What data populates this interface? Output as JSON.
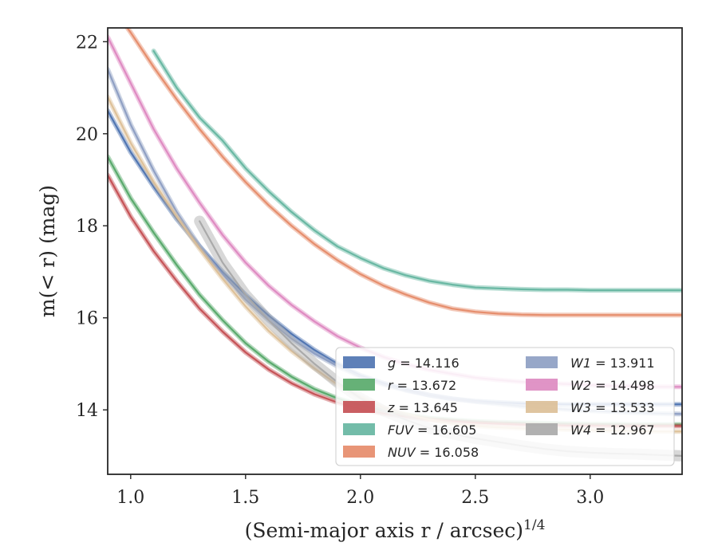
{
  "chart_data": {
    "type": "line",
    "xlabel": "(Semi-major axis r / arcsec)",
    "xlabel_sup": "1/4",
    "ylabel": "m(< r) (mag)",
    "xlim": [
      0.9,
      3.4
    ],
    "ylim": [
      22.3,
      12.6
    ],
    "y_inverted": true,
    "xticks": [
      1.0,
      1.5,
      2.0,
      2.5,
      3.0
    ],
    "xtick_labels": [
      "1.0",
      "1.5",
      "2.0",
      "2.5",
      "3.0"
    ],
    "yticks": [
      14,
      16,
      18,
      20,
      22
    ],
    "ytick_labels": [
      "14",
      "16",
      "18",
      "20",
      "22"
    ],
    "grid": false,
    "legend_position": "lower-right",
    "legend_columns": 2,
    "series": [
      {
        "name": "g",
        "total": "14.116",
        "label_suffix": " = 14.116",
        "color": "#4c72b0",
        "x": [
          0.9,
          1.0,
          1.1,
          1.2,
          1.3,
          1.4,
          1.5,
          1.6,
          1.7,
          1.8,
          1.9,
          2.0,
          2.1,
          2.2,
          2.3,
          2.4,
          2.5,
          2.6,
          2.7,
          2.8,
          2.9,
          3.0,
          3.1,
          3.2,
          3.3,
          3.4
        ],
        "y": [
          20.5,
          19.6,
          18.85,
          18.15,
          17.55,
          17.0,
          16.5,
          16.05,
          15.65,
          15.3,
          15.0,
          14.75,
          14.58,
          14.44,
          14.32,
          14.24,
          14.19,
          14.16,
          14.14,
          14.13,
          14.12,
          14.12,
          14.12,
          14.12,
          14.12,
          14.12
        ]
      },
      {
        "name": "r",
        "total": "13.672",
        "label_suffix": " = 13.672",
        "color": "#55a868",
        "x": [
          0.9,
          1.0,
          1.1,
          1.2,
          1.3,
          1.4,
          1.5,
          1.6,
          1.7,
          1.8,
          1.9,
          2.0,
          2.1,
          2.2,
          2.3,
          2.4,
          2.5,
          2.6,
          2.7,
          2.8,
          2.9,
          3.0,
          3.1,
          3.2,
          3.3,
          3.4
        ],
        "y": [
          19.5,
          18.6,
          17.85,
          17.15,
          16.5,
          15.95,
          15.45,
          15.05,
          14.72,
          14.45,
          14.25,
          14.1,
          13.98,
          13.89,
          13.82,
          13.78,
          13.75,
          13.73,
          13.72,
          13.71,
          13.7,
          13.69,
          13.69,
          13.68,
          13.68,
          13.68
        ]
      },
      {
        "name": "z",
        "total": "13.645",
        "label_suffix": " = 13.645",
        "color": "#c44e52",
        "x": [
          0.9,
          1.0,
          1.1,
          1.2,
          1.3,
          1.4,
          1.5,
          1.6,
          1.7,
          1.8,
          1.9,
          2.0,
          2.1,
          2.2,
          2.3,
          2.4,
          2.5,
          2.6,
          2.7,
          2.8,
          2.9,
          3.0,
          3.1,
          3.2,
          3.3,
          3.4
        ],
        "y": [
          19.1,
          18.2,
          17.45,
          16.8,
          16.2,
          15.7,
          15.25,
          14.88,
          14.58,
          14.34,
          14.16,
          14.02,
          13.92,
          13.85,
          13.79,
          13.75,
          13.72,
          13.7,
          13.68,
          13.67,
          13.66,
          13.66,
          13.65,
          13.65,
          13.65,
          13.65
        ]
      },
      {
        "name": "FUV",
        "total": "16.605",
        "label_suffix": " = 16.605",
        "color": "#64b5a0",
        "x": [
          1.1,
          1.2,
          1.3,
          1.4,
          1.5,
          1.6,
          1.7,
          1.8,
          1.9,
          2.0,
          2.1,
          2.2,
          2.3,
          2.4,
          2.5,
          2.6,
          2.7,
          2.8,
          2.9,
          3.0,
          3.1,
          3.2,
          3.3,
          3.4
        ],
        "y": [
          21.8,
          21.0,
          20.35,
          19.85,
          19.25,
          18.75,
          18.3,
          17.9,
          17.55,
          17.3,
          17.08,
          16.92,
          16.8,
          16.72,
          16.66,
          16.64,
          16.62,
          16.61,
          16.61,
          16.6,
          16.6,
          16.6,
          16.6,
          16.6
        ]
      },
      {
        "name": "NUV",
        "total": "16.058",
        "label_suffix": " = 16.058",
        "color": "#e58a68",
        "x": [
          0.9,
          1.0,
          1.1,
          1.2,
          1.3,
          1.4,
          1.5,
          1.6,
          1.7,
          1.8,
          1.9,
          2.0,
          2.1,
          2.2,
          2.3,
          2.4,
          2.5,
          2.6,
          2.7,
          2.8,
          2.9,
          3.0,
          3.1,
          3.2,
          3.3,
          3.4
        ],
        "y": [
          22.9,
          22.2,
          21.45,
          20.75,
          20.1,
          19.5,
          18.95,
          18.45,
          18.0,
          17.6,
          17.25,
          16.95,
          16.7,
          16.5,
          16.33,
          16.2,
          16.13,
          16.09,
          16.07,
          16.06,
          16.06,
          16.06,
          16.06,
          16.06,
          16.06,
          16.06
        ]
      },
      {
        "name": "W1",
        "total": "13.911",
        "label_suffix": " = 13.911",
        "color": "#8c9dc2",
        "x": [
          0.9,
          1.0,
          1.1,
          1.2,
          1.3,
          1.4,
          1.5,
          1.6,
          1.7,
          1.8,
          1.9,
          2.0,
          2.1,
          2.2,
          2.3,
          2.4,
          2.5,
          2.6,
          2.7,
          2.8,
          2.9,
          3.0,
          3.1,
          3.2,
          3.3,
          3.4
        ],
        "y": [
          21.4,
          20.2,
          19.2,
          18.3,
          17.55,
          16.95,
          16.4,
          15.95,
          15.55,
          15.22,
          14.95,
          14.72,
          14.55,
          14.42,
          14.32,
          14.24,
          14.18,
          14.13,
          14.08,
          14.04,
          14.01,
          13.98,
          13.96,
          13.94,
          13.92,
          13.91
        ]
      },
      {
        "name": "W2",
        "total": "14.498",
        "label_suffix": " = 14.498",
        "color": "#dd88c0",
        "x": [
          0.9,
          1.0,
          1.1,
          1.2,
          1.3,
          1.4,
          1.5,
          1.6,
          1.7,
          1.8,
          1.9,
          2.0,
          2.1,
          2.2,
          2.3,
          2.4,
          2.5,
          2.6,
          2.7,
          2.8,
          2.9,
          3.0,
          3.1,
          3.2,
          3.3,
          3.4
        ],
        "y": [
          22.1,
          21.1,
          20.1,
          19.25,
          18.5,
          17.8,
          17.2,
          16.7,
          16.28,
          15.92,
          15.6,
          15.35,
          15.15,
          14.99,
          14.87,
          14.78,
          14.7,
          14.65,
          14.61,
          14.58,
          14.56,
          14.54,
          14.52,
          14.51,
          14.5,
          14.5
        ]
      },
      {
        "name": "W3",
        "total": "13.533",
        "label_suffix": " = 13.533",
        "color": "#dcbf96",
        "x": [
          0.9,
          1.0,
          1.1,
          1.2,
          1.3,
          1.4,
          1.5,
          1.6,
          1.7,
          1.8,
          1.9,
          2.0,
          2.1,
          2.2,
          2.3,
          2.4,
          2.5,
          2.6,
          2.7,
          2.8,
          2.9,
          3.0,
          3.1,
          3.2,
          3.3,
          3.4
        ],
        "y": [
          20.8,
          19.8,
          18.95,
          18.2,
          17.5,
          16.85,
          16.25,
          15.72,
          15.28,
          14.9,
          14.55,
          14.27,
          14.05,
          13.9,
          13.79,
          13.7,
          13.65,
          13.62,
          13.6,
          13.58,
          13.57,
          13.56,
          13.55,
          13.54,
          13.53,
          13.53
        ]
      },
      {
        "name": "W4",
        "total": "12.967",
        "label_suffix": " = 12.967",
        "color": "#a8a8a8",
        "x": [
          1.3,
          1.4,
          1.5,
          1.6,
          1.7,
          1.8,
          1.9,
          2.0,
          2.1,
          2.2,
          2.3,
          2.4,
          2.5,
          2.6,
          2.7,
          2.8,
          2.9,
          3.0,
          3.1,
          3.2,
          3.3,
          3.4
        ],
        "y": [
          18.1,
          17.2,
          16.5,
          15.95,
          15.45,
          15.0,
          14.6,
          14.25,
          13.98,
          13.78,
          13.6,
          13.48,
          13.38,
          13.3,
          13.22,
          13.15,
          13.1,
          13.07,
          13.05,
          13.04,
          13.02,
          13.0
        ]
      }
    ]
  }
}
